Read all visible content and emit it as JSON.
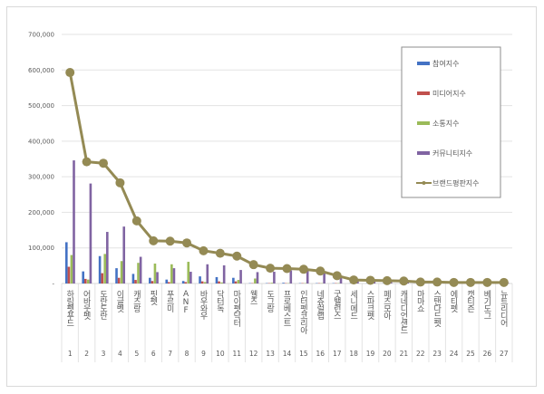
{
  "chart_data": {
    "type": "bar",
    "title": "",
    "xlabel": "",
    "ylabel": "",
    "ylim": [
      0,
      700000
    ],
    "yticks": [
      "-",
      "100,000",
      "200,000",
      "300,000",
      "400,000",
      "500,000",
      "600,000",
      "700,000"
    ],
    "grid": true,
    "legend_position": "right",
    "categories": [
      "하림펫푸드",
      "어바웃펫",
      "도란도란",
      "이글벳",
      "캐츠랑",
      "핏펫",
      "푸르미",
      "ANF",
      "바우와우",
      "닥터독",
      "마이펫닥터",
      "웰츠",
      "도그랑",
      "프로베스트",
      "인터펫코리아",
      "네츄럴랩",
      "굿밸런스",
      "세니메드",
      "스파크펫",
      "페츠모아",
      "캐네디언샌드",
      "마마쇼",
      "스탠다드펫",
      "에티펫",
      "캣티즌",
      "베기도그",
      "뉴트리디어"
    ],
    "numbers": [
      "1",
      "2",
      "3",
      "4",
      "5",
      "6",
      "7",
      "8",
      "9",
      "10",
      "11",
      "12",
      "13",
      "14",
      "15",
      "16",
      "17",
      "18",
      "19",
      "20",
      "21",
      "22",
      "23",
      "24",
      "25",
      "26",
      "27"
    ],
    "series": [
      {
        "name": "참여지수",
        "type": "bar",
        "color": "#4472c4",
        "values": [
          116000,
          34000,
          77000,
          43000,
          27000,
          16000,
          11000,
          7000,
          20000,
          18000,
          16000,
          1000,
          1000,
          2000,
          1000,
          1000,
          1000,
          500,
          500,
          500,
          500,
          300,
          300,
          300,
          300,
          300,
          300
        ]
      },
      {
        "name": "미디어지수",
        "type": "bar",
        "color": "#c0504d",
        "values": [
          47000,
          13000,
          29000,
          16000,
          10000,
          7000,
          4000,
          4000,
          6000,
          6000,
          6000,
          1000,
          1000,
          1000,
          1000,
          1000,
          1000,
          500,
          500,
          500,
          500,
          300,
          300,
          300,
          300,
          300,
          300
        ]
      },
      {
        "name": "소통지수",
        "type": "bar",
        "color": "#9bbb59",
        "values": [
          80000,
          11000,
          83000,
          63000,
          58000,
          56000,
          54000,
          61000,
          4000,
          3000,
          10000,
          14000,
          2000,
          1000,
          1000,
          1000,
          1000,
          500,
          500,
          500,
          500,
          300,
          300,
          300,
          300,
          300,
          300
        ]
      },
      {
        "name": "커뮤니티지수",
        "type": "bar",
        "color": "#8064a2",
        "values": [
          346000,
          281000,
          145000,
          160000,
          75000,
          32000,
          43000,
          33000,
          54000,
          51000,
          38000,
          32000,
          33000,
          37000,
          36000,
          31000,
          22000,
          10000,
          8000,
          6000,
          5000,
          2000,
          2000,
          2000,
          2000,
          2000,
          2000
        ]
      },
      {
        "name": "브랜드평판지수",
        "type": "line",
        "color": "#948a54",
        "values": [
          593000,
          342000,
          338000,
          283000,
          176000,
          120000,
          119000,
          114000,
          92000,
          85000,
          77000,
          53000,
          43000,
          42000,
          40000,
          35000,
          22000,
          10000,
          9000,
          8000,
          7000,
          4000,
          4000,
          3000,
          3000,
          3000,
          3000
        ]
      }
    ]
  }
}
